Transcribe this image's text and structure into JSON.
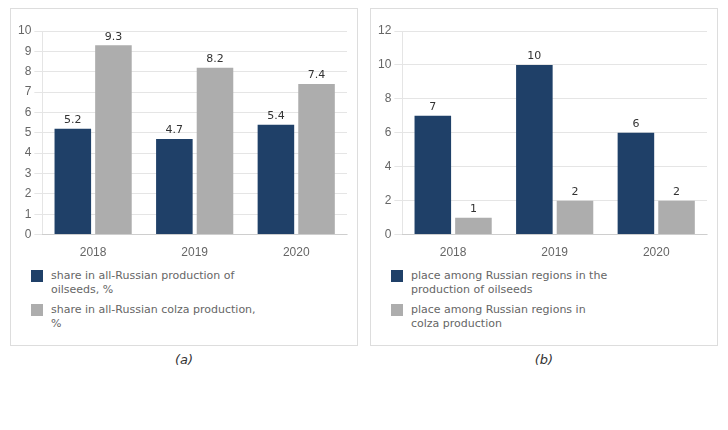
{
  "chart_data": [
    {
      "type": "bar",
      "subtitle": "(a)",
      "categories": [
        "2018",
        "2019",
        "2020"
      ],
      "series": [
        {
          "name": "share in all-Russian production of\noilseeds, %",
          "color": "#1F4068",
          "values": [
            5.2,
            4.7,
            5.4
          ]
        },
        {
          "name": "share in all-Russian colza production,\n%",
          "color": "#ADADAD",
          "values": [
            9.3,
            8.2,
            7.4
          ]
        }
      ],
      "ylim": [
        0,
        10
      ],
      "yticks": [
        0,
        1,
        2,
        3,
        4,
        5,
        6,
        7,
        8,
        9,
        10
      ],
      "grid": true,
      "data_labels": true,
      "legend": "bottom"
    },
    {
      "type": "bar",
      "subtitle": "(b)",
      "categories": [
        "2018",
        "2019",
        "2020"
      ],
      "series": [
        {
          "name": "place among Russian regions in the\nproduction of oilseeds",
          "color": "#1F4068",
          "values": [
            7,
            10,
            6
          ]
        },
        {
          "name": "place among Russian regions in\ncolza production",
          "color": "#ADADAD",
          "values": [
            1,
            2,
            2
          ]
        }
      ],
      "ylim": [
        0,
        12
      ],
      "yticks": [
        0,
        2,
        4,
        6,
        8,
        10,
        12
      ],
      "grid": true,
      "data_labels": true,
      "legend": "bottom"
    }
  ]
}
